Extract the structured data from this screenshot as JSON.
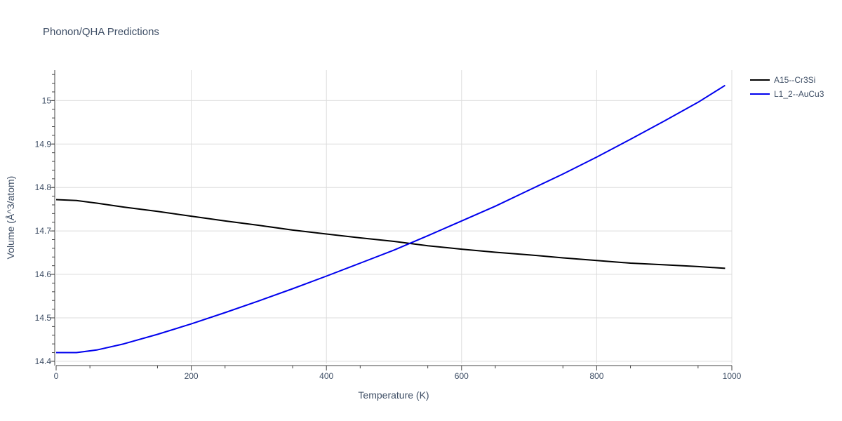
{
  "chart_data": {
    "type": "line",
    "title": "Phonon/QHA Predictions",
    "xlabel": "Temperature (K)",
    "ylabel": "Volume (Å^3/atom)",
    "xlim": [
      0,
      1000
    ],
    "ylim": [
      14.395,
      15.07
    ],
    "x_ticks": [
      0,
      200,
      400,
      600,
      800,
      1000
    ],
    "y_ticks": [
      14.4,
      14.5,
      14.6,
      14.7,
      14.8,
      14.9,
      15
    ],
    "x_tick_labels": [
      "0",
      "200",
      "400",
      "600",
      "800",
      "1000"
    ],
    "y_tick_labels": [
      "14.4",
      "14.5",
      "14.6",
      "14.7",
      "14.8",
      "14.9",
      "15"
    ],
    "grid": true,
    "legend_position": "top-right",
    "series": [
      {
        "name": "A15--Cr3Si",
        "color": "#000000",
        "x": [
          0,
          30,
          60,
          100,
          150,
          200,
          250,
          300,
          350,
          400,
          450,
          500,
          550,
          600,
          650,
          700,
          750,
          800,
          850,
          900,
          950,
          990
        ],
        "y": [
          14.772,
          14.77,
          14.764,
          14.755,
          14.745,
          14.734,
          14.723,
          14.713,
          14.702,
          14.693,
          14.684,
          14.676,
          14.666,
          14.658,
          14.651,
          14.645,
          14.638,
          14.632,
          14.626,
          14.622,
          14.618,
          14.614
        ]
      },
      {
        "name": "L1_2--AuCu3",
        "color": "#0000ee",
        "x": [
          0,
          30,
          60,
          100,
          150,
          200,
          250,
          300,
          350,
          400,
          450,
          500,
          550,
          600,
          650,
          700,
          750,
          800,
          850,
          900,
          950,
          990
        ],
        "y": [
          14.42,
          14.42,
          14.426,
          14.44,
          14.462,
          14.486,
          14.512,
          14.539,
          14.567,
          14.596,
          14.626,
          14.656,
          14.689,
          14.723,
          14.757,
          14.794,
          14.831,
          14.87,
          14.911,
          14.953,
          14.996,
          15.035
        ]
      }
    ]
  }
}
